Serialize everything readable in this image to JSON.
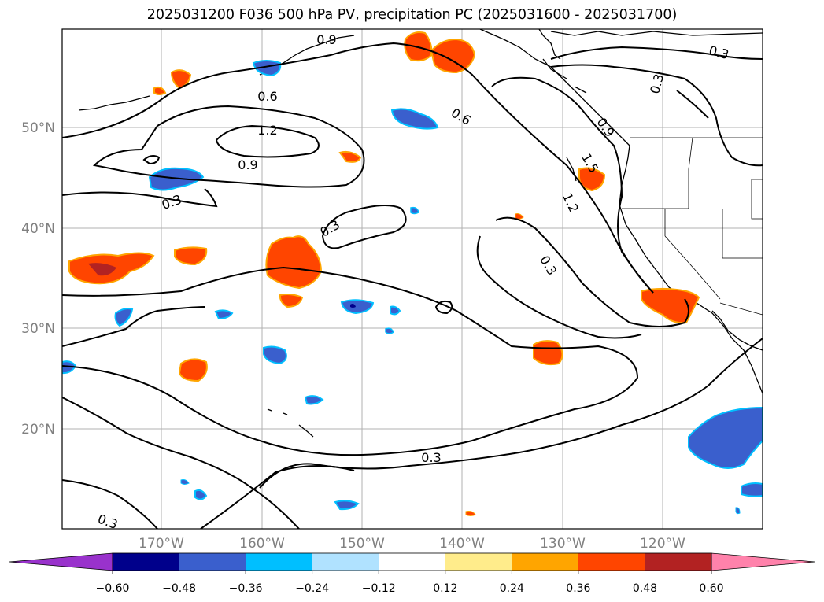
{
  "title": "2025031200 F036 500 hPa PV, precipitation PC (2025031600 - 2025031700)",
  "map": {
    "lat_labels": [
      "50°N",
      "40°N",
      "30°N",
      "20°N"
    ],
    "lon_labels": [
      "170°W",
      "160°W",
      "150°W",
      "140°W",
      "130°W",
      "120°W"
    ],
    "gridlines": true
  },
  "contour_labels": [
    {
      "text": "0.9"
    },
    {
      "text": "0.3"
    },
    {
      "text": "0.6"
    },
    {
      "text": "1.2"
    },
    {
      "text": "0.9"
    },
    {
      "text": "0.3"
    },
    {
      "text": "0.6"
    },
    {
      "text": "0.3"
    },
    {
      "text": "0.9"
    },
    {
      "text": "1.5"
    },
    {
      "text": "1.2"
    },
    {
      "text": "0.3"
    },
    {
      "text": "0.3"
    },
    {
      "text": "0.3"
    },
    {
      "text": "0.3"
    }
  ],
  "colorbar": {
    "colors": [
      "#9932cc",
      "#00008b",
      "#3a5fcd",
      "#00bfff",
      "#b0e2ff",
      "#ffffff",
      "#ffec8b",
      "#ffa500",
      "#ff4500",
      "#b22222",
      "#ff82ab"
    ],
    "tick_labels": [
      "−0.60",
      "−0.48",
      "−0.36",
      "−0.24",
      "−0.12",
      "0.12",
      "0.24",
      "0.36",
      "0.48",
      "0.60"
    ]
  }
}
